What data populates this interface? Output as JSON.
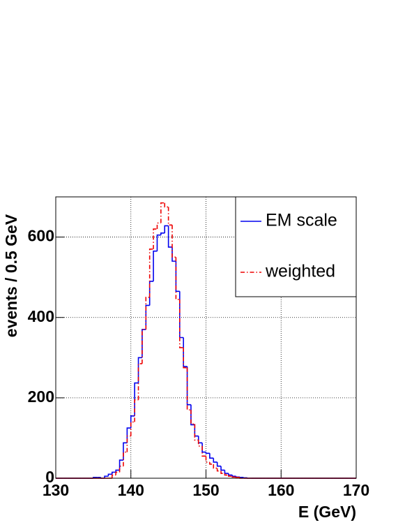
{
  "chart_data": {
    "type": "histogram",
    "xlabel": "E (GeV)",
    "ylabel": "events / 0.5 GeV",
    "bins": [
      130,
      130.5,
      131,
      131.5,
      132,
      132.5,
      133,
      133.5,
      134,
      134.5,
      135,
      135.5,
      136,
      136.5,
      137,
      137.5,
      138,
      138.5,
      139,
      139.5,
      140,
      140.5,
      141,
      141.5,
      142,
      142.5,
      143,
      143.5,
      144,
      144.5,
      145,
      145.5,
      146,
      146.5,
      147,
      147.5,
      148,
      148.5,
      149,
      149.5,
      150,
      150.5,
      151,
      151.5,
      152,
      152.5,
      153,
      153.5,
      154,
      154.5,
      155,
      155.5,
      156,
      156.5,
      157,
      157.5,
      158,
      158.5,
      159,
      159.5,
      160,
      160.5,
      161,
      161.5,
      162,
      162.5,
      163,
      163.5,
      164,
      164.5,
      165,
      165.5,
      166,
      166.5,
      167,
      167.5,
      168,
      168.5,
      169,
      169.5,
      170
    ],
    "series": [
      {
        "name": "EM scale",
        "color": "#0000ee",
        "style": "solid",
        "values": [
          0,
          0,
          0,
          0,
          0,
          0,
          0,
          0,
          0,
          0,
          2,
          2,
          0,
          5,
          10,
          15,
          20,
          45,
          88,
          125,
          155,
          237,
          300,
          370,
          430,
          490,
          565,
          605,
          610,
          628,
          575,
          540,
          465,
          350,
          278,
          183,
          133,
          105,
          88,
          65,
          62,
          50,
          40,
          30,
          20,
          12,
          8,
          5,
          3,
          2,
          1,
          0,
          0,
          0,
          0,
          0,
          0,
          0,
          0,
          0,
          0,
          0,
          0,
          0,
          0,
          0,
          0,
          0,
          0,
          0,
          0,
          0,
          0,
          0,
          0,
          0,
          0,
          0,
          0,
          0
        ]
      },
      {
        "name": "weighted",
        "color": "#ee0000",
        "style": "dashdot",
        "values": [
          0,
          0,
          0,
          0,
          0,
          0,
          0,
          0,
          0,
          0,
          0,
          0,
          0,
          0,
          0,
          8,
          15,
          30,
          65,
          105,
          140,
          195,
          285,
          370,
          450,
          570,
          620,
          635,
          685,
          675,
          630,
          550,
          445,
          325,
          275,
          170,
          135,
          95,
          80,
          55,
          40,
          35,
          25,
          18,
          12,
          8,
          5,
          3,
          2,
          0,
          0,
          0,
          0,
          0,
          0,
          0,
          0,
          0,
          0,
          0,
          0,
          0,
          0,
          0,
          0,
          0,
          0,
          0,
          0,
          0,
          0,
          0,
          0,
          0,
          0,
          0,
          0,
          0,
          0,
          0
        ]
      }
    ],
    "xlim": [
      130,
      170
    ],
    "xticks": [
      130,
      140,
      150,
      160,
      170
    ],
    "ylim": [
      0,
      700
    ],
    "yticks": [
      0,
      200,
      400,
      600
    ],
    "grid": true,
    "legend": "top-right"
  }
}
